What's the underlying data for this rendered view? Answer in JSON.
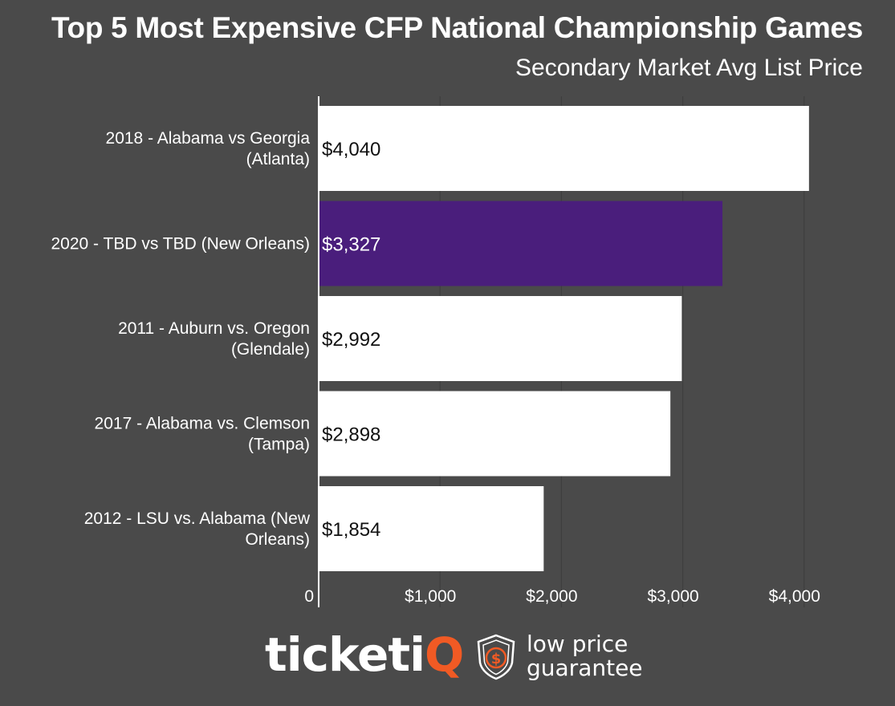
{
  "colors": {
    "background": "#4a4a4a",
    "bar_default": "#ffffff",
    "bar_highlight": "#4a1e7c",
    "gridline": "#3e3e3e",
    "axis": "#ffffff",
    "brand_accent": "#f15a24"
  },
  "chart_data": {
    "type": "bar",
    "orientation": "horizontal",
    "title": "Top 5 Most Expensive CFP National Championship Games",
    "subtitle": "Secondary Market Avg List Price",
    "categories": [
      [
        "2018 - Alabama vs Georgia",
        "(Atlanta)"
      ],
      [
        "2020 - TBD vs TBD (New Orleans)"
      ],
      [
        "2011 - Auburn vs. Oregon",
        "(Glendale)"
      ],
      [
        "2017 - Alabama vs. Clemson",
        "(Tampa)"
      ],
      [
        "2012 - LSU vs. Alabama (New",
        "Orleans)"
      ]
    ],
    "values": [
      4040,
      3327,
      2992,
      2898,
      1854
    ],
    "value_labels": [
      "$4,040",
      "$3,327",
      "$2,992",
      "$2,898",
      "$1,854"
    ],
    "highlight_index": 1,
    "xlim": [
      0,
      4000
    ],
    "xticks": [
      0,
      1000,
      2000,
      3000,
      4000
    ],
    "xtick_labels": [
      "0",
      "$1,000",
      "$2,000",
      "$3,000",
      "$4,000"
    ],
    "grid": "vertical",
    "legend": "none"
  },
  "footer": {
    "brand_prefix": "ticketi",
    "brand_accent_letter": "Q",
    "tagline_line1": "low price",
    "tagline_line2": "guarantee",
    "logo_icon": "shield-dollar-icon"
  }
}
